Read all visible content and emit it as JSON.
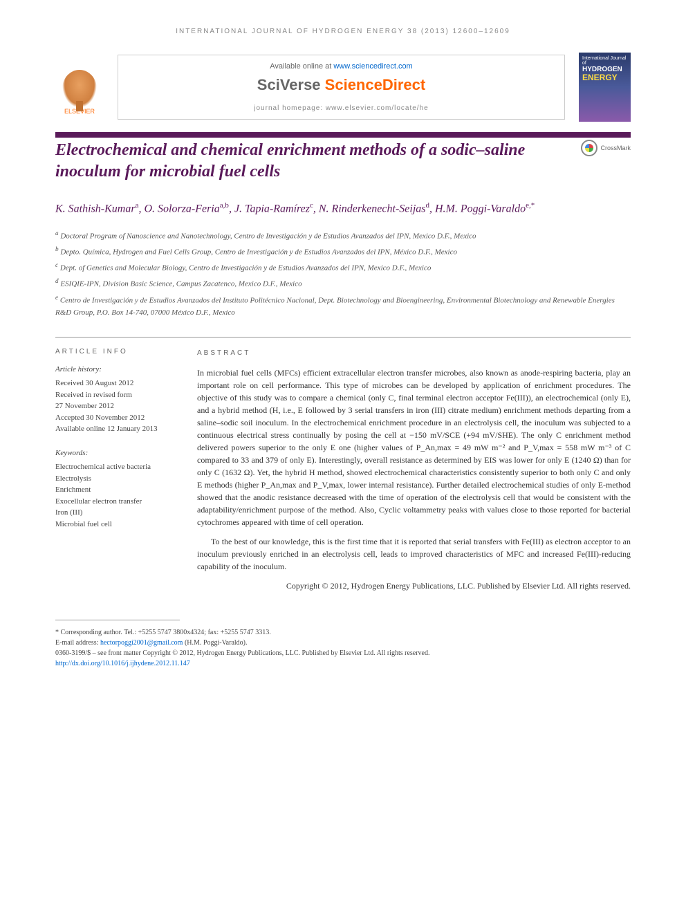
{
  "running_header": "INTERNATIONAL JOURNAL OF HYDROGEN ENERGY 38 (2013) 12600–12609",
  "banner": {
    "elsevier_label": "ELSEVIER",
    "available_text": "Available online at ",
    "available_url": "www.sciencedirect.com",
    "sciverse_prefix": "SciVerse ",
    "sciverse_main": "ScienceDirect",
    "homepage_text": "journal homepage: www.elsevier.com/locate/he",
    "cover_line1": "International Journal of",
    "cover_line2": "HYDROGEN",
    "cover_line3": "ENERGY"
  },
  "title": "Electrochemical and chemical enrichment methods of a sodic–saline inoculum for microbial fuel cells",
  "crossmark_label": "CrossMark",
  "authors_html": "K. Sathish-Kumar<sup>a</sup>, O. Solorza-Feria<sup>a,b</sup>, J. Tapia-Ramírez<sup>c</sup>, N. Rinderkenecht-Seijas<sup>d</sup>, H.M. Poggi-Varaldo<sup>e,*</sup>",
  "affiliations": [
    "<sup>a</sup> Doctoral Program of Nanoscience and Nanotechnology, Centro de Investigación y de Estudios Avanzados del IPN, Mexico D.F., Mexico",
    "<sup>b</sup> Depto. Química, Hydrogen and Fuel Cells Group, Centro de Investigación y de Estudios Avanzados del IPN, México D.F., Mexico",
    "<sup>c</sup> Dept. of Genetics and Molecular Biology, Centro de Investigación y de Estudios Avanzados del IPN, Mexico D.F., Mexico",
    "<sup>d</sup> ESIQIE-IPN, Division Basic Science, Campus Zacatenco, Mexico D.F., Mexico",
    "<sup>e</sup> Centro de Investigación y de Estudios Avanzados del Instituto Politécnico Nacional, Dept. Biotechnology and Bioengineering, Environmental Biotechnology and Renewable Energies R&D Group, P.O. Box 14-740, 07000 México D.F., Mexico"
  ],
  "info": {
    "section_label": "ARTICLE INFO",
    "history_title": "Article history:",
    "history": [
      "Received 30 August 2012",
      "Received in revised form",
      "27 November 2012",
      "Accepted 30 November 2012",
      "Available online 12 January 2013"
    ],
    "keywords_title": "Keywords:",
    "keywords": [
      "Electrochemical active bacteria",
      "Electrolysis",
      "Enrichment",
      "Exocellular electron transfer",
      "Iron (III)",
      "Microbial fuel cell"
    ]
  },
  "abstract": {
    "section_label": "ABSTRACT",
    "para1": "In microbial fuel cells (MFCs) efficient extracellular electron transfer microbes, also known as anode-respiring bacteria, play an important role on cell performance. This type of microbes can be developed by application of enrichment procedures. The objective of this study was to compare a chemical (only C, final terminal electron acceptor Fe(III)), an electrochemical (only E), and a hybrid method (H, i.e., E followed by 3 serial transfers in iron (III) citrate medium) enrichment methods departing from a saline–sodic soil inoculum. In the electrochemical enrichment procedure in an electrolysis cell, the inoculum was subjected to a continuous electrical stress continually by posing the cell at −150 mV/SCE (+94 mV/SHE). The only C enrichment method delivered powers superior to the only E one (higher values of P_An,max = 49 mW m⁻² and P_V,max = 558 mW m⁻³ of C compared to 33 and 379 of only E). Interestingly, overall resistance as determined by EIS was lower for only E (1240 Ω) than for only C (1632 Ω). Yet, the hybrid H method, showed electrochemical characteristics consistently superior to both only C and only E methods (higher P_An,max and P_V,max, lower internal resistance). Further detailed electrochemical studies of only E-method showed that the anodic resistance decreased with the time of operation of the electrolysis cell that would be consistent with the adaptability/enrichment purpose of the method. Also, Cyclic voltammetry peaks with values close to those reported for bacterial cytochromes appeared with time of cell operation.",
    "para2": "To the best of our knowledge, this is the first time that it is reported that serial transfers with Fe(III) as electron acceptor to an inoculum previously enriched in an electrolysis cell, leads to improved characteristics of MFC and increased Fe(III)-reducing capability of the inoculum.",
    "copyright": "Copyright © 2012, Hydrogen Energy Publications, LLC. Published by Elsevier Ltd. All rights reserved."
  },
  "footnotes": {
    "corresponding": "* Corresponding author. Tel.: +5255 5747 3800x4324; fax: +5255 5747 3313.",
    "email_label": "E-mail address: ",
    "email": "hectorpoggi2001@gmail.com",
    "email_suffix": " (H.M. Poggi-Varaldo).",
    "issn": "0360-3199/$ – see front matter Copyright © 2012, Hydrogen Energy Publications, LLC. Published by Elsevier Ltd. All rights reserved.",
    "doi_label": "",
    "doi": "http://dx.doi.org/10.1016/j.ijhydene.2012.11.147"
  },
  "colors": {
    "purple": "#5a1a5a",
    "orange": "#ff6600",
    "link": "#0066cc"
  }
}
